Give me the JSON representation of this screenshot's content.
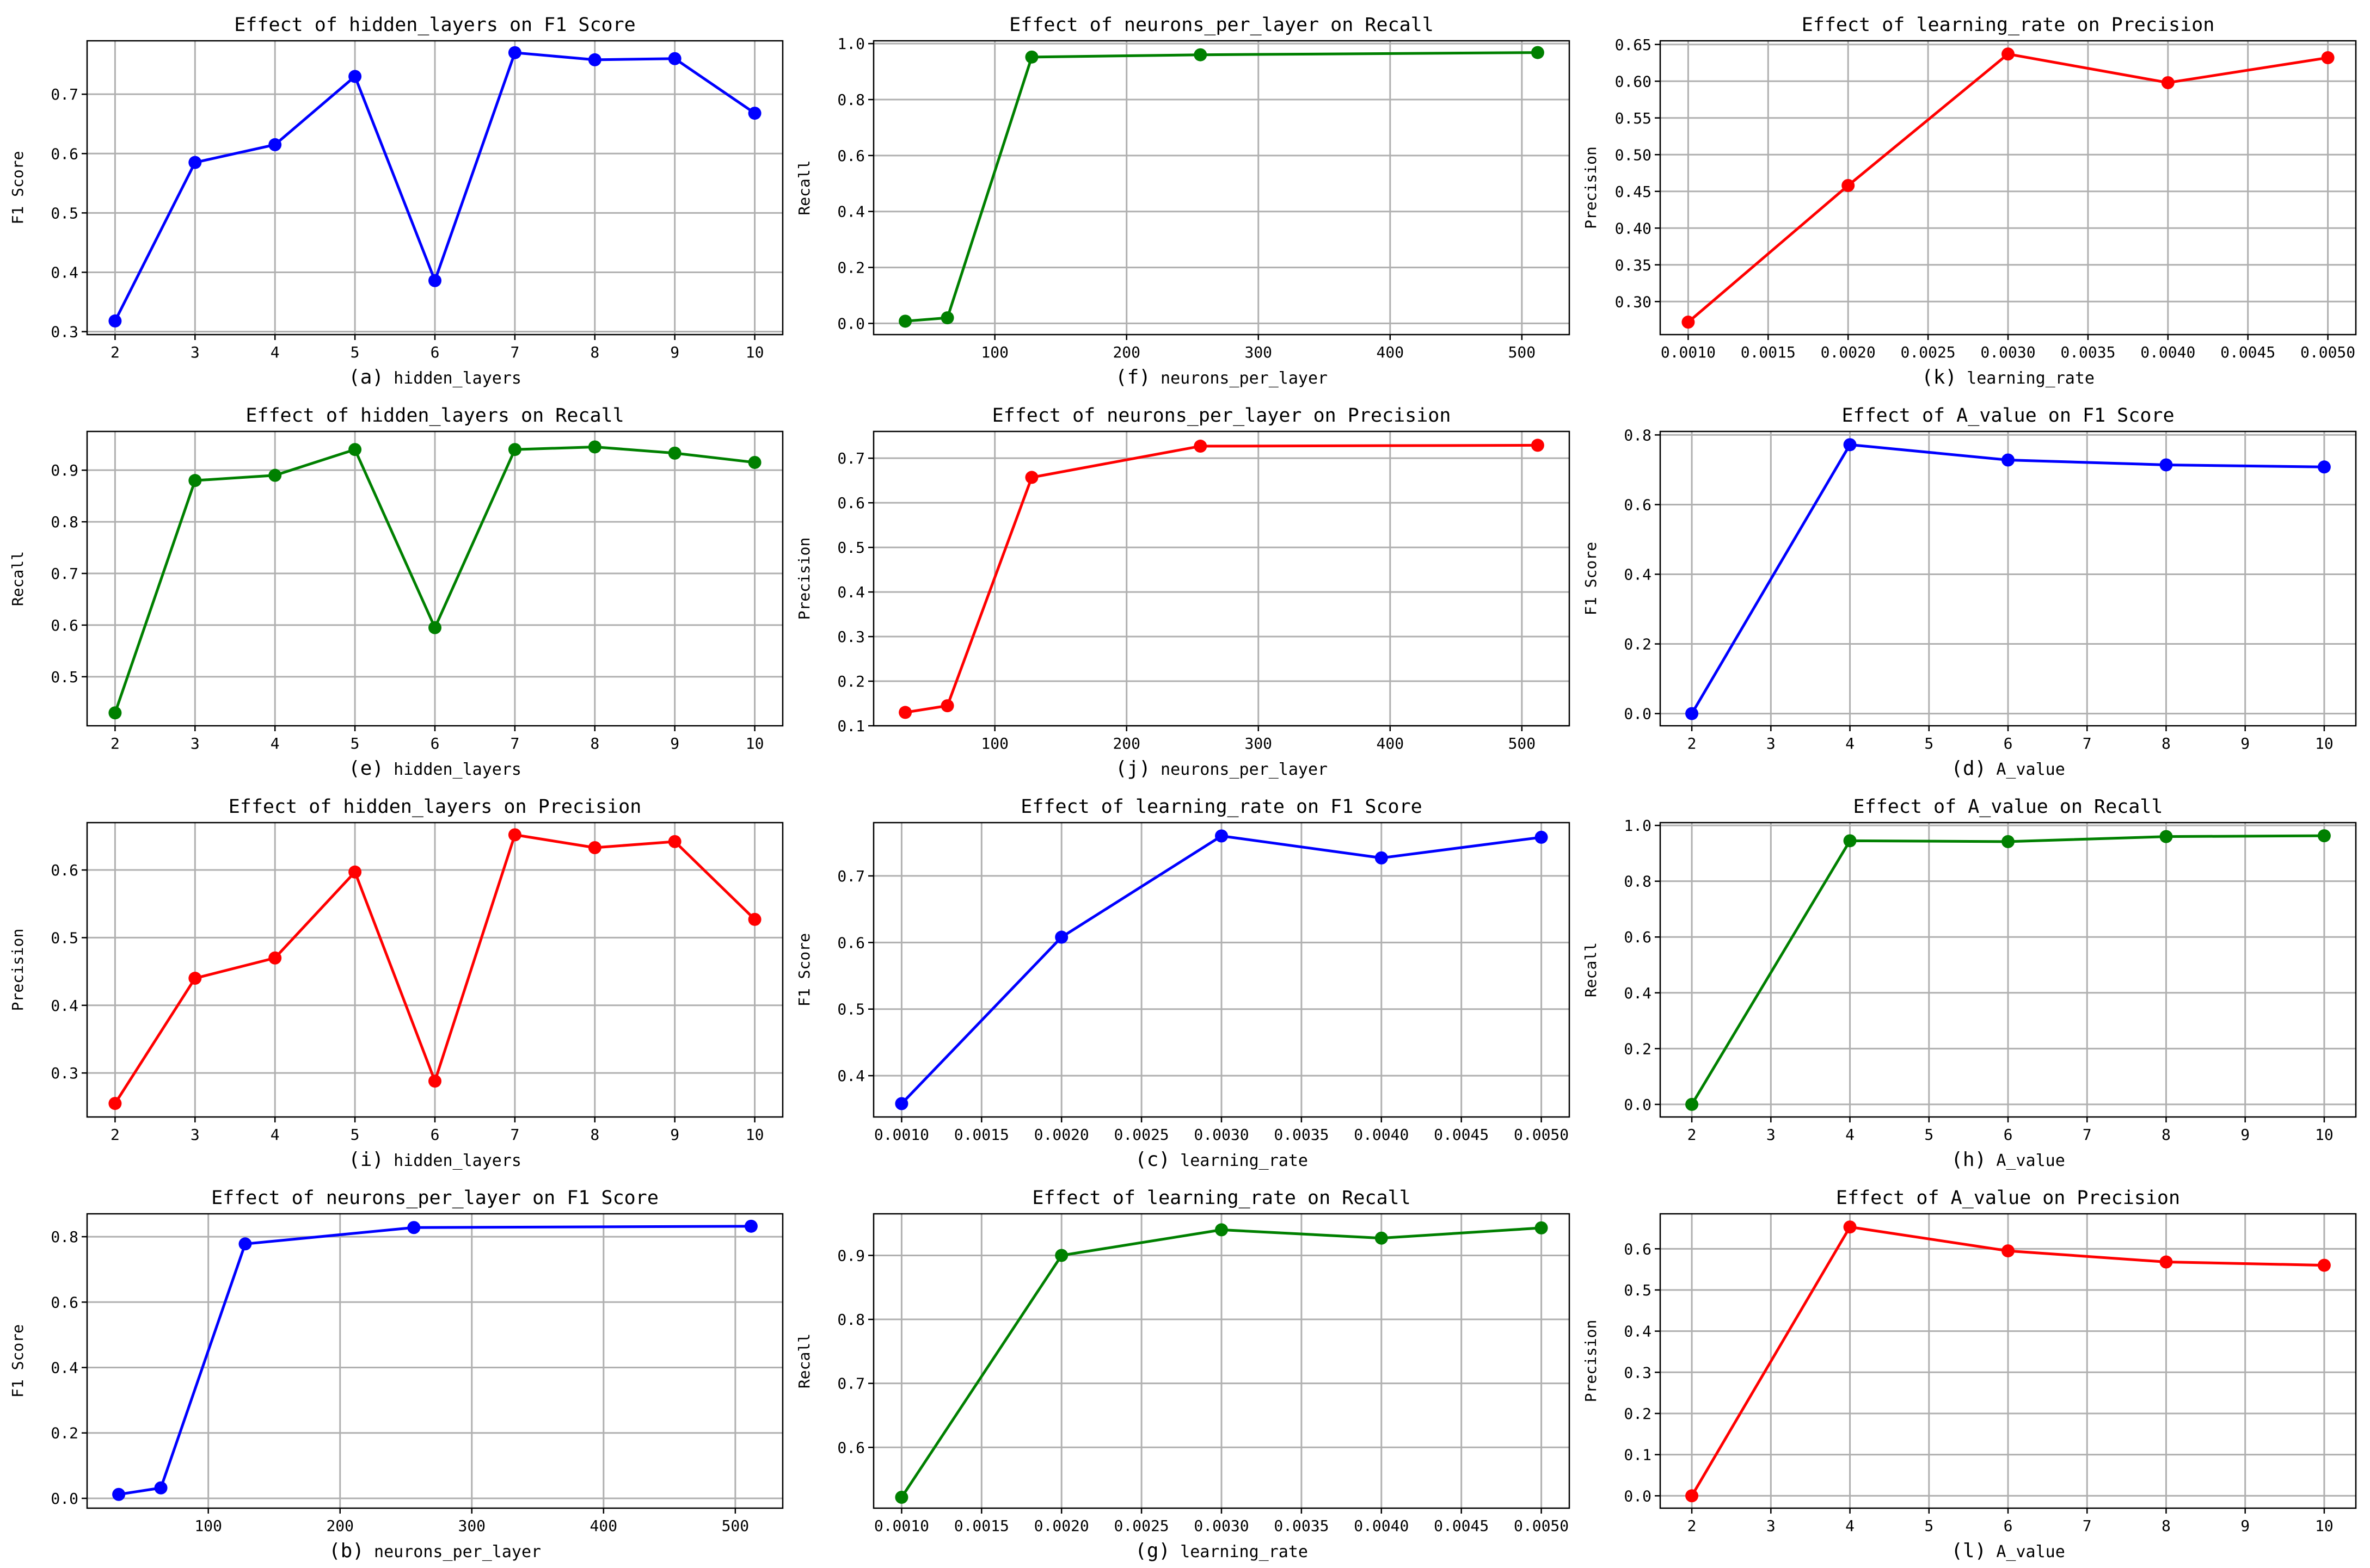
{
  "chart_data": [
    {
      "id": "a",
      "type": "line",
      "title": "Effect of hidden_layers on F1 Score",
      "caption_letter": "(a)",
      "xlabel": "hidden_layers",
      "ylabel": "F1 Score",
      "color": "#0000ff",
      "x": [
        2,
        3,
        4,
        5,
        6,
        7,
        8,
        9,
        10
      ],
      "y": [
        0.318,
        0.585,
        0.615,
        0.73,
        0.386,
        0.77,
        0.758,
        0.76,
        0.668
      ],
      "xlim": [
        1.65,
        10.35
      ],
      "ylim": [
        0.295,
        0.79
      ],
      "xticks": [
        2,
        3,
        4,
        5,
        6,
        7,
        8,
        9,
        10
      ],
      "yticks": [
        0.3,
        0.4,
        0.5,
        0.6,
        0.7
      ],
      "xtick_labels": [
        "2",
        "3",
        "4",
        "5",
        "6",
        "7",
        "8",
        "9",
        "10"
      ],
      "ytick_labels": [
        "0.3",
        "0.4",
        "0.5",
        "0.6",
        "0.7"
      ],
      "grid": true
    },
    {
      "id": "e",
      "type": "line",
      "title": "Effect of hidden_layers on Recall",
      "caption_letter": "(e)",
      "xlabel": "hidden_layers",
      "ylabel": "Recall",
      "color": "#008000",
      "x": [
        2,
        3,
        4,
        5,
        6,
        7,
        8,
        9,
        10
      ],
      "y": [
        0.43,
        0.88,
        0.89,
        0.94,
        0.595,
        0.94,
        0.945,
        0.933,
        0.915
      ],
      "xlim": [
        1.65,
        10.35
      ],
      "ylim": [
        0.405,
        0.975
      ],
      "xticks": [
        2,
        3,
        4,
        5,
        6,
        7,
        8,
        9,
        10
      ],
      "yticks": [
        0.5,
        0.6,
        0.7,
        0.8,
        0.9
      ],
      "xtick_labels": [
        "2",
        "3",
        "4",
        "5",
        "6",
        "7",
        "8",
        "9",
        "10"
      ],
      "ytick_labels": [
        "0.5",
        "0.6",
        "0.7",
        "0.8",
        "0.9"
      ],
      "grid": true
    },
    {
      "id": "i",
      "type": "line",
      "title": "Effect of hidden_layers on Precision",
      "caption_letter": "(i)",
      "xlabel": "hidden_layers",
      "ylabel": "Precision",
      "color": "#ff0000",
      "x": [
        2,
        3,
        4,
        5,
        6,
        7,
        8,
        9,
        10
      ],
      "y": [
        0.255,
        0.44,
        0.47,
        0.597,
        0.288,
        0.652,
        0.633,
        0.642,
        0.527
      ],
      "xlim": [
        1.65,
        10.35
      ],
      "ylim": [
        0.235,
        0.67
      ],
      "xticks": [
        2,
        3,
        4,
        5,
        6,
        7,
        8,
        9,
        10
      ],
      "yticks": [
        0.3,
        0.4,
        0.5,
        0.6
      ],
      "xtick_labels": [
        "2",
        "3",
        "4",
        "5",
        "6",
        "7",
        "8",
        "9",
        "10"
      ],
      "ytick_labels": [
        "0.3",
        "0.4",
        "0.5",
        "0.6"
      ],
      "grid": true
    },
    {
      "id": "b",
      "type": "line",
      "title": "Effect of neurons_per_layer on F1 Score",
      "caption_letter": "(b)",
      "xlabel": "neurons_per_layer",
      "ylabel": "F1 Score",
      "color": "#0000ff",
      "x": [
        32,
        64,
        128,
        256,
        512
      ],
      "y": [
        0.012,
        0.032,
        0.778,
        0.828,
        0.832
      ],
      "xlim": [
        8,
        536
      ],
      "ylim": [
        -0.03,
        0.87
      ],
      "xticks": [
        100,
        200,
        300,
        400,
        500
      ],
      "yticks": [
        0.0,
        0.2,
        0.4,
        0.6,
        0.8
      ],
      "xtick_labels": [
        "100",
        "200",
        "300",
        "400",
        "500"
      ],
      "ytick_labels": [
        "0.0",
        "0.2",
        "0.4",
        "0.6",
        "0.8"
      ],
      "grid": true
    },
    {
      "id": "f",
      "type": "line",
      "title": "Effect of neurons_per_layer on Recall",
      "caption_letter": "(f)",
      "xlabel": "neurons_per_layer",
      "ylabel": "Recall",
      "color": "#008000",
      "x": [
        32,
        64,
        128,
        256,
        512
      ],
      "y": [
        0.008,
        0.02,
        0.952,
        0.96,
        0.968
      ],
      "xlim": [
        8,
        536
      ],
      "ylim": [
        -0.04,
        1.01
      ],
      "xticks": [
        100,
        200,
        300,
        400,
        500
      ],
      "yticks": [
        0.0,
        0.2,
        0.4,
        0.6,
        0.8,
        1.0
      ],
      "xtick_labels": [
        "100",
        "200",
        "300",
        "400",
        "500"
      ],
      "ytick_labels": [
        "0.0",
        "0.2",
        "0.4",
        "0.6",
        "0.8",
        "1.0"
      ],
      "grid": true
    },
    {
      "id": "j",
      "type": "line",
      "title": "Effect of neurons_per_layer on Precision",
      "caption_letter": "(j)",
      "xlabel": "neurons_per_layer",
      "ylabel": "Precision",
      "color": "#ff0000",
      "x": [
        32,
        64,
        128,
        256,
        512
      ],
      "y": [
        0.13,
        0.145,
        0.657,
        0.727,
        0.729
      ],
      "xlim": [
        8,
        536
      ],
      "ylim": [
        0.1,
        0.76
      ],
      "xticks": [
        100,
        200,
        300,
        400,
        500
      ],
      "yticks": [
        0.1,
        0.2,
        0.3,
        0.4,
        0.5,
        0.6,
        0.7
      ],
      "xtick_labels": [
        "100",
        "200",
        "300",
        "400",
        "500"
      ],
      "ytick_labels": [
        "0.1",
        "0.2",
        "0.3",
        "0.4",
        "0.5",
        "0.6",
        "0.7"
      ],
      "grid": true
    },
    {
      "id": "c",
      "type": "line",
      "title": "Effect of learning_rate on F1 Score",
      "caption_letter": "(c)",
      "xlabel": "learning_rate",
      "ylabel": "F1 Score",
      "color": "#0000ff",
      "x": [
        0.001,
        0.002,
        0.003,
        0.004,
        0.005
      ],
      "y": [
        0.358,
        0.608,
        0.76,
        0.727,
        0.758
      ],
      "xlim": [
        0.000825,
        0.005175
      ],
      "ylim": [
        0.338,
        0.78
      ],
      "xticks": [
        0.001,
        0.0015,
        0.002,
        0.0025,
        0.003,
        0.0035,
        0.004,
        0.0045,
        0.005
      ],
      "yticks": [
        0.4,
        0.5,
        0.6,
        0.7
      ],
      "xtick_labels": [
        "0.0010",
        "0.0015",
        "0.0020",
        "0.0025",
        "0.0030",
        "0.0035",
        "0.0040",
        "0.0045",
        "0.0050"
      ],
      "ytick_labels": [
        "0.4",
        "0.5",
        "0.6",
        "0.7"
      ],
      "grid": true
    },
    {
      "id": "g",
      "type": "line",
      "title": "Effect of learning_rate on Recall",
      "caption_letter": "(g)",
      "xlabel": "learning_rate",
      "ylabel": "Recall",
      "color": "#008000",
      "x": [
        0.001,
        0.002,
        0.003,
        0.004,
        0.005
      ],
      "y": [
        0.522,
        0.9,
        0.94,
        0.927,
        0.943
      ],
      "xlim": [
        0.000825,
        0.005175
      ],
      "ylim": [
        0.505,
        0.965
      ],
      "xticks": [
        0.001,
        0.0015,
        0.002,
        0.0025,
        0.003,
        0.0035,
        0.004,
        0.0045,
        0.005
      ],
      "yticks": [
        0.6,
        0.7,
        0.8,
        0.9
      ],
      "xtick_labels": [
        "0.0010",
        "0.0015",
        "0.0020",
        "0.0025",
        "0.0030",
        "0.0035",
        "0.0040",
        "0.0045",
        "0.0050"
      ],
      "ytick_labels": [
        "0.6",
        "0.7",
        "0.8",
        "0.9"
      ],
      "grid": true
    },
    {
      "id": "k",
      "type": "line",
      "title": "Effect of learning_rate on Precision",
      "caption_letter": "(k)",
      "xlabel": "learning_rate",
      "ylabel": "Precision",
      "color": "#ff0000",
      "x": [
        0.001,
        0.002,
        0.003,
        0.004,
        0.005
      ],
      "y": [
        0.272,
        0.458,
        0.637,
        0.598,
        0.632
      ],
      "xlim": [
        0.000825,
        0.005175
      ],
      "ylim": [
        0.255,
        0.655
      ],
      "xticks": [
        0.001,
        0.0015,
        0.002,
        0.0025,
        0.003,
        0.0035,
        0.004,
        0.0045,
        0.005
      ],
      "yticks": [
        0.3,
        0.35,
        0.4,
        0.45,
        0.5,
        0.55,
        0.6,
        0.65
      ],
      "xtick_labels": [
        "0.0010",
        "0.0015",
        "0.0020",
        "0.0025",
        "0.0030",
        "0.0035",
        "0.0040",
        "0.0045",
        "0.0050"
      ],
      "ytick_labels": [
        "0.30",
        "0.35",
        "0.40",
        "0.45",
        "0.50",
        "0.55",
        "0.60",
        "0.65"
      ],
      "grid": true
    },
    {
      "id": "d",
      "type": "line",
      "title": "Effect of A_value on F1 Score",
      "caption_letter": "(d)",
      "xlabel": "A_value",
      "ylabel": "F1 Score",
      "color": "#0000ff",
      "x": [
        2,
        4,
        6,
        8,
        10
      ],
      "y": [
        0.0,
        0.772,
        0.728,
        0.714,
        0.708
      ],
      "xlim": [
        1.6,
        10.4
      ],
      "ylim": [
        -0.035,
        0.81
      ],
      "xticks": [
        2,
        3,
        4,
        5,
        6,
        7,
        8,
        9,
        10
      ],
      "yticks": [
        0.0,
        0.2,
        0.4,
        0.6,
        0.8
      ],
      "xtick_labels": [
        "2",
        "3",
        "4",
        "5",
        "6",
        "7",
        "8",
        "9",
        "10"
      ],
      "ytick_labels": [
        "0.0",
        "0.2",
        "0.4",
        "0.6",
        "0.8"
      ],
      "grid": true
    },
    {
      "id": "h",
      "type": "line",
      "title": "Effect of A_value on Recall",
      "caption_letter": "(h)",
      "xlabel": "A_value",
      "ylabel": "Recall",
      "color": "#008000",
      "x": [
        2,
        4,
        6,
        8,
        10
      ],
      "y": [
        0.0,
        0.945,
        0.942,
        0.96,
        0.963
      ],
      "xlim": [
        1.6,
        10.4
      ],
      "ylim": [
        -0.045,
        1.01
      ],
      "xticks": [
        2,
        3,
        4,
        5,
        6,
        7,
        8,
        9,
        10
      ],
      "yticks": [
        0.0,
        0.2,
        0.4,
        0.6,
        0.8,
        1.0
      ],
      "xtick_labels": [
        "2",
        "3",
        "4",
        "5",
        "6",
        "7",
        "8",
        "9",
        "10"
      ],
      "ytick_labels": [
        "0.0",
        "0.2",
        "0.4",
        "0.6",
        "0.8",
        "1.0"
      ],
      "grid": true
    },
    {
      "id": "l",
      "type": "line",
      "title": "Effect of A_value on Precision",
      "caption_letter": "(l)",
      "xlabel": "A_value",
      "ylabel": "Precision",
      "color": "#ff0000",
      "x": [
        2,
        4,
        6,
        8,
        10
      ],
      "y": [
        0.0,
        0.653,
        0.595,
        0.568,
        0.56
      ],
      "xlim": [
        1.6,
        10.4
      ],
      "ylim": [
        -0.03,
        0.685
      ],
      "xticks": [
        2,
        3,
        4,
        5,
        6,
        7,
        8,
        9,
        10
      ],
      "yticks": [
        0.0,
        0.1,
        0.2,
        0.3,
        0.4,
        0.5,
        0.6
      ],
      "xtick_labels": [
        "2",
        "3",
        "4",
        "5",
        "6",
        "7",
        "8",
        "9",
        "10"
      ],
      "ytick_labels": [
        "0.0",
        "0.1",
        "0.2",
        "0.3",
        "0.4",
        "0.5",
        "0.6"
      ],
      "grid": true
    }
  ]
}
